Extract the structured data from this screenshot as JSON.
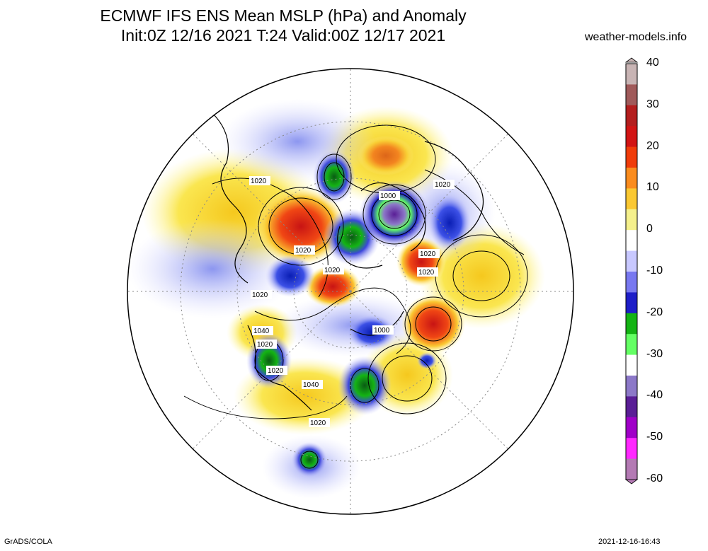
{
  "title": {
    "line1": "ECMWF IFS ENS Mean MSLP (hPa) and Anomaly",
    "line2": "Init:0Z 12/16 2021  T:24 Valid:00Z 12/17 2021"
  },
  "site": "weather-models.info",
  "footer": {
    "left": "GrADS/COLA",
    "right": "2021-12-16-16:43"
  },
  "colorbar": {
    "labels": [
      "40",
      "30",
      "20",
      "10",
      "0",
      "-10",
      "-20",
      "-30",
      "-40",
      "-50",
      "-60"
    ],
    "colors": [
      "#c8b4b4",
      "#a05a5a",
      "#b41e1e",
      "#d21414",
      "#f03c0a",
      "#fa8c1e",
      "#fac832",
      "#f5f08c",
      "#ffffff",
      "#c8c8ff",
      "#7878f0",
      "#1e1ec8",
      "#14b414",
      "#64ff64",
      "#ffffff",
      "#8c78c8",
      "#5a1e96",
      "#a000c8",
      "#ff28ff",
      "#b47ab4"
    ]
  },
  "contour_labels": [
    {
      "text": "1020"
    },
    {
      "text": "1000"
    },
    {
      "text": "1020"
    },
    {
      "text": "1020"
    },
    {
      "text": "1020"
    },
    {
      "text": "1020"
    },
    {
      "text": "1020"
    },
    {
      "text": "1020"
    },
    {
      "text": "1000"
    },
    {
      "text": "1040"
    },
    {
      "text": "1020"
    },
    {
      "text": "1020"
    },
    {
      "text": "1040"
    },
    {
      "text": "1020"
    }
  ]
}
